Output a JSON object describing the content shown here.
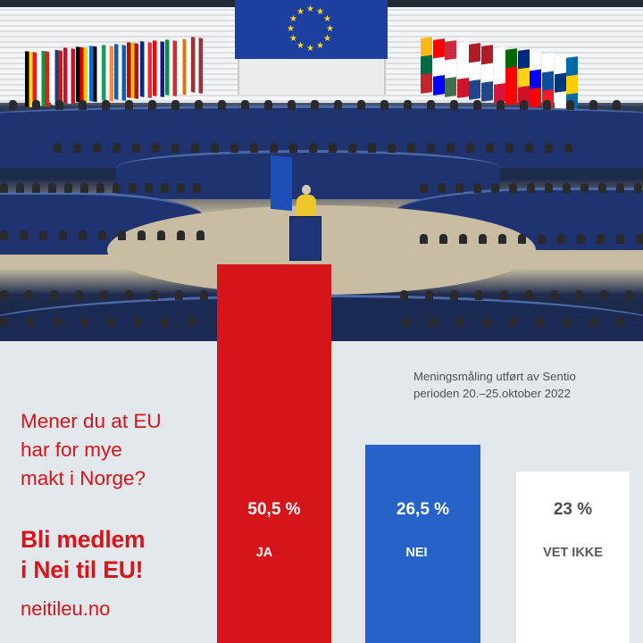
{
  "photo": {
    "description": "European Parliament plenary chamber with EU flag banner, member-state flags and speaker at podium"
  },
  "question": {
    "lines": [
      "Mener du at EU",
      "har for mye",
      "makt i Norge?"
    ]
  },
  "cta": {
    "lines": [
      "Bli medlem",
      "i Nei til EU!"
    ],
    "website": "neitileu.no"
  },
  "source": {
    "lines": [
      "Meningsmåling utført av Sentio",
      "perioden 20.–25.oktober 2022"
    ]
  },
  "colors": {
    "ja": "#d7141a",
    "nei": "#2563c8",
    "vet_ikke": "#ffffff",
    "background": "#e1e7ea",
    "text_red": "#d7141a",
    "text_dark": "#4a4f55"
  },
  "bars": [
    {
      "value_label": "50,5 %",
      "label": "JA"
    },
    {
      "value_label": "26,5 %",
      "label": "NEI"
    },
    {
      "value_label": "23 %",
      "label": "VET IKKE"
    }
  ],
  "chart_data": {
    "type": "bar",
    "title": "Mener du at EU har for mye makt i Norge?",
    "subtitle": "Meningsmåling utført av Sentio perioden 20.–25.oktober 2022",
    "categories": [
      "JA",
      "NEI",
      "VET IKKE"
    ],
    "values": [
      50.5,
      26.5,
      23
    ],
    "value_labels": [
      "50,5 %",
      "26,5 %",
      "23 %"
    ],
    "colors": [
      "#d7141a",
      "#2563c8",
      "#ffffff"
    ],
    "unit": "%",
    "xlabel": "",
    "ylabel": "",
    "grid": false,
    "legend": "none"
  }
}
